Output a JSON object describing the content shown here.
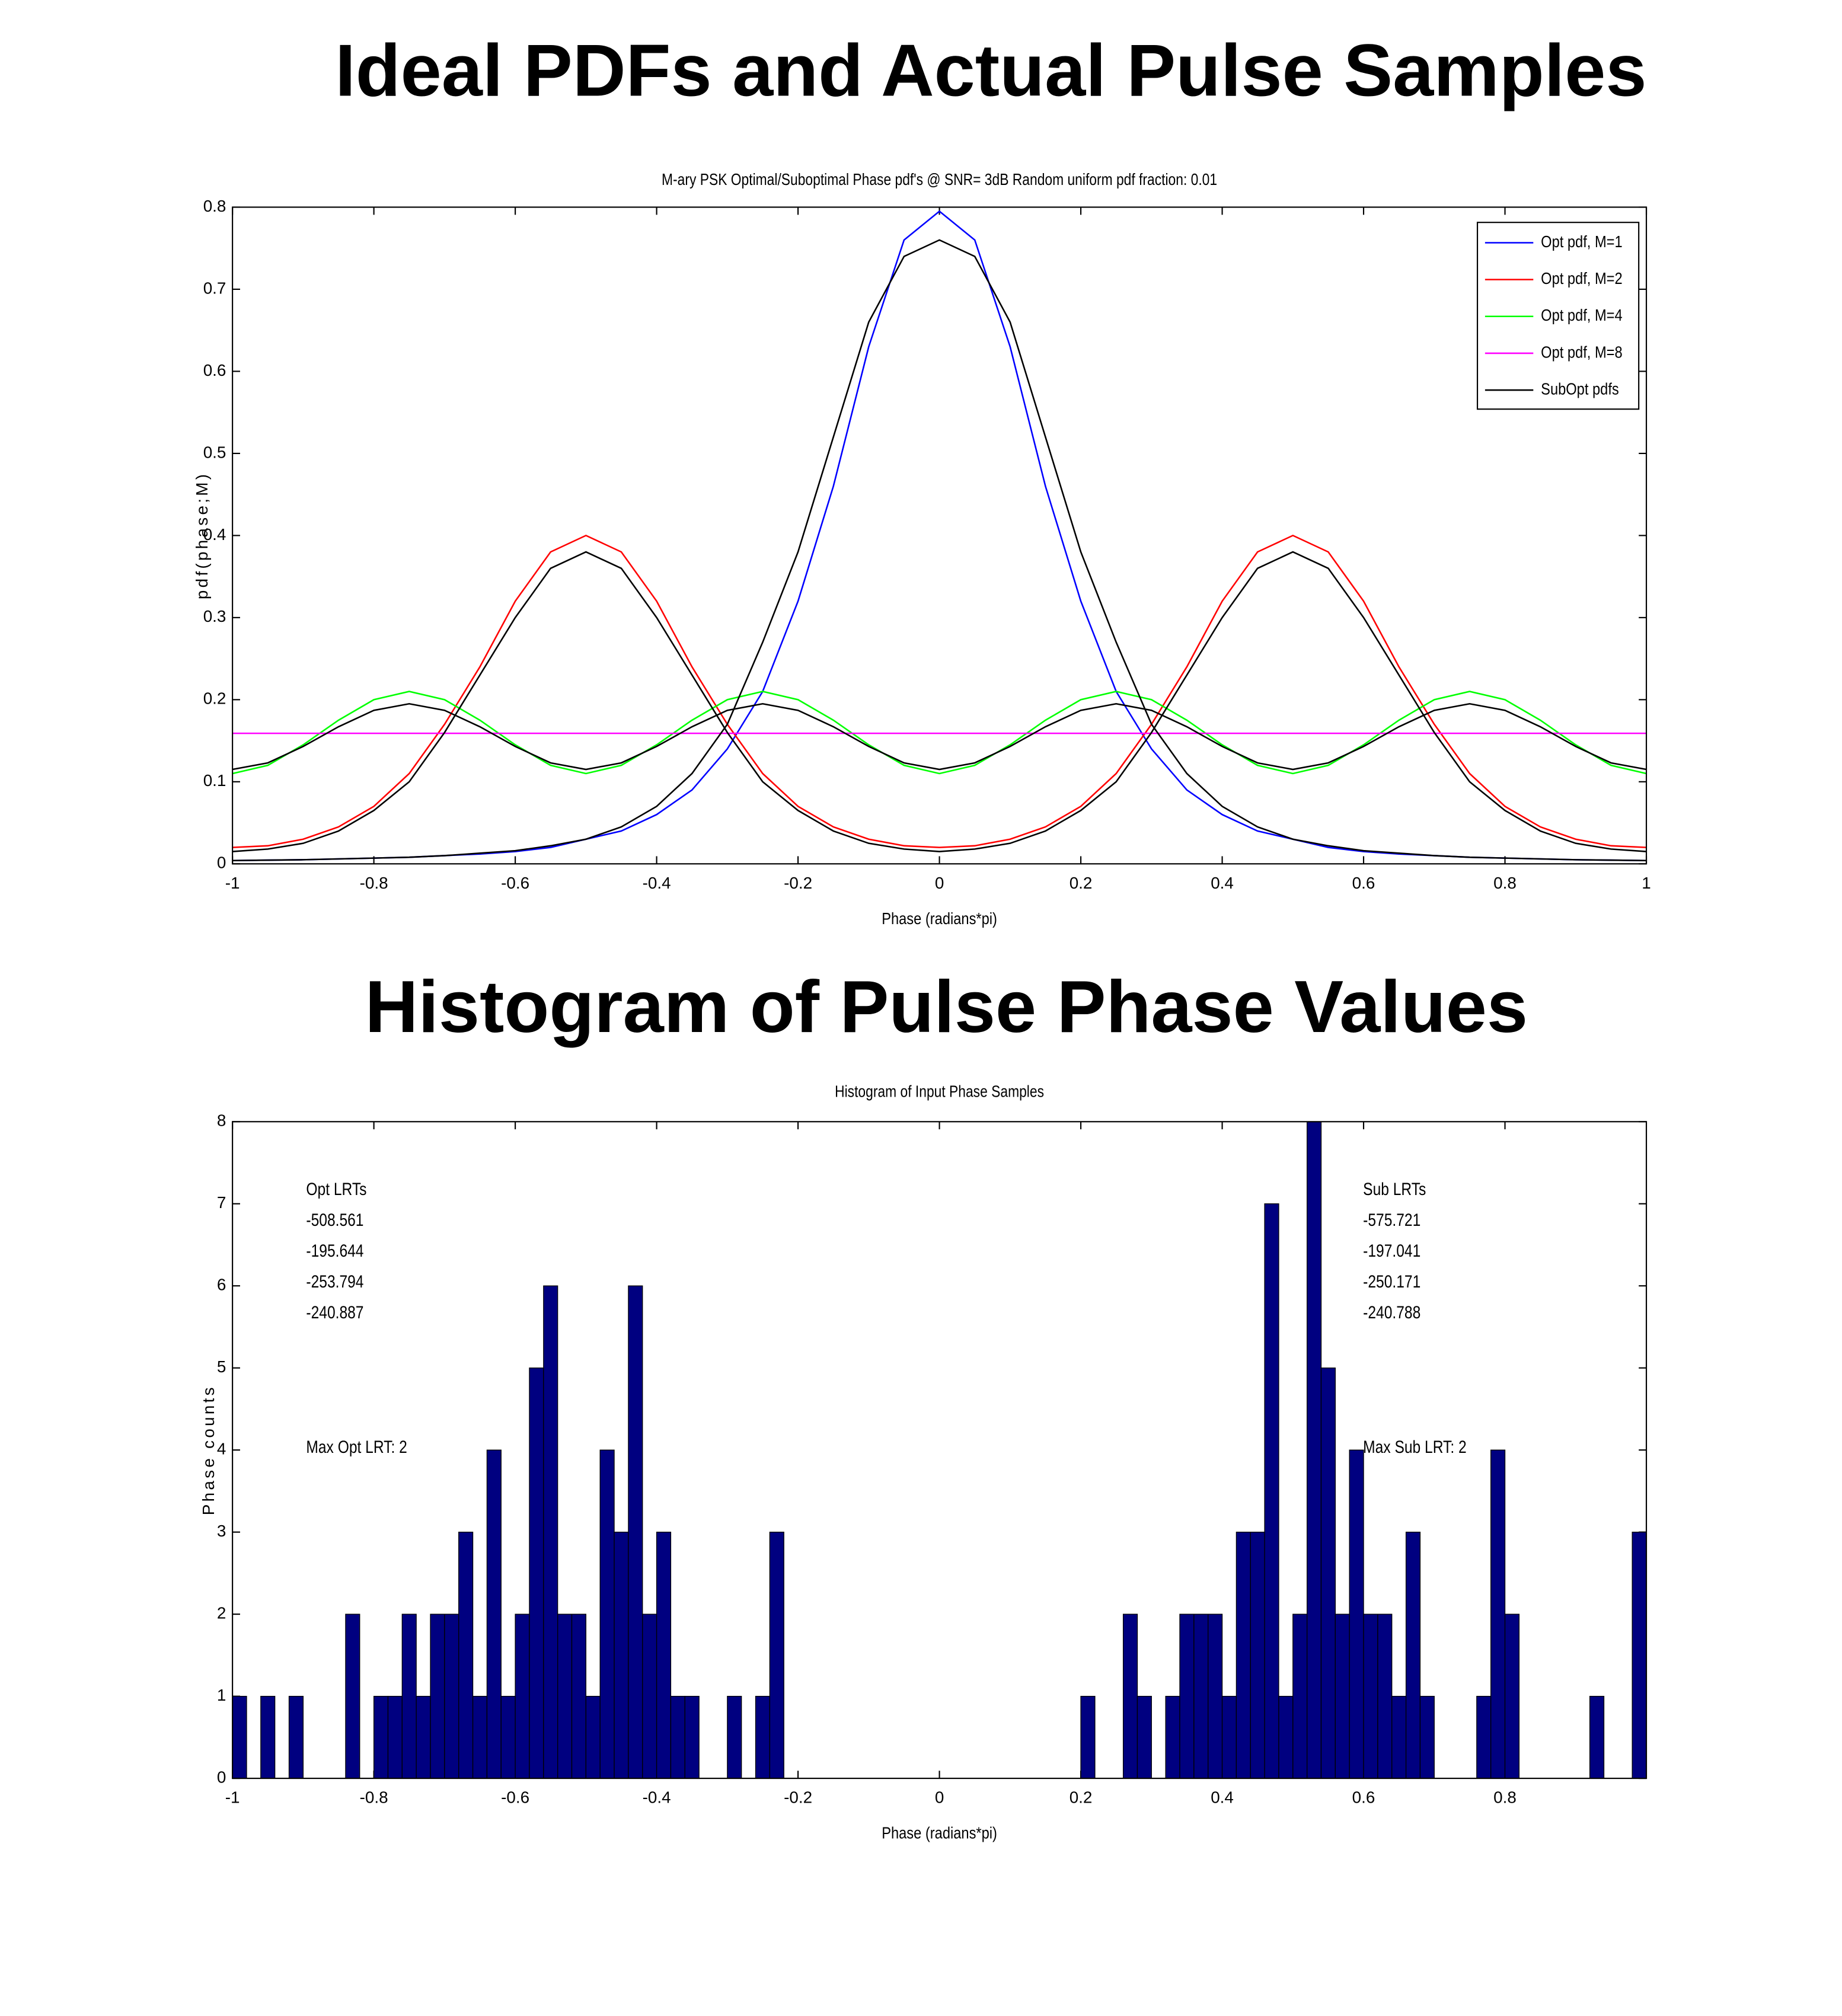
{
  "headings": [
    "Ideal PDFs and Actual Pulse Samples",
    "Histogram of Pulse Phase Values"
  ],
  "chart_data": [
    {
      "type": "line",
      "title": "M-ary PSK Optimal/Suboptimal Phase pdf's @ SNR= 3dB Random uniform pdf fraction: 0.01",
      "xlabel": "Phase (radians*pi)",
      "ylabel": "pdf(phase;M)",
      "xlim": [
        -1,
        1
      ],
      "ylim": [
        0,
        0.8
      ],
      "xticks": [
        -1,
        -0.8,
        -0.6,
        -0.4,
        -0.2,
        0,
        0.2,
        0.4,
        0.6,
        0.8,
        1
      ],
      "yticks": [
        0,
        0.1,
        0.2,
        0.3,
        0.4,
        0.5,
        0.6,
        0.7,
        0.8
      ],
      "legend": "upper right",
      "x": [
        -1,
        -0.95,
        -0.9,
        -0.85,
        -0.8,
        -0.75,
        -0.7,
        -0.65,
        -0.6,
        -0.55,
        -0.5,
        -0.45,
        -0.4,
        -0.35,
        -0.3,
        -0.25,
        -0.2,
        -0.15,
        -0.1,
        -0.05,
        0,
        0.05,
        0.1,
        0.15,
        0.2,
        0.25,
        0.3,
        0.35,
        0.4,
        0.45,
        0.5,
        0.55,
        0.6,
        0.65,
        0.7,
        0.75,
        0.8,
        0.85,
        0.9,
        0.95,
        1
      ],
      "series": [
        {
          "name": "Opt pdf, M=1",
          "color": "#0000ff",
          "values": [
            0.004,
            0.0045,
            0.005,
            0.006,
            0.007,
            0.008,
            0.01,
            0.012,
            0.015,
            0.02,
            0.03,
            0.04,
            0.06,
            0.09,
            0.14,
            0.21,
            0.32,
            0.46,
            0.63,
            0.76,
            0.795,
            0.76,
            0.63,
            0.46,
            0.32,
            0.21,
            0.14,
            0.09,
            0.06,
            0.04,
            0.03,
            0.02,
            0.015,
            0.012,
            0.01,
            0.008,
            0.007,
            0.006,
            0.005,
            0.0045,
            0.004
          ]
        },
        {
          "name": "Opt pdf, M=2",
          "color": "#ff0000",
          "values": [
            0.02,
            0.022,
            0.03,
            0.045,
            0.07,
            0.11,
            0.17,
            0.24,
            0.32,
            0.38,
            0.4,
            0.38,
            0.32,
            0.24,
            0.17,
            0.11,
            0.07,
            0.045,
            0.03,
            0.022,
            0.02,
            0.022,
            0.03,
            0.045,
            0.07,
            0.11,
            0.17,
            0.24,
            0.32,
            0.38,
            0.4,
            0.38,
            0.32,
            0.24,
            0.17,
            0.11,
            0.07,
            0.045,
            0.03,
            0.022,
            0.02
          ]
        },
        {
          "name": "Opt pdf, M=4",
          "color": "#00ff00",
          "values": [
            0.11,
            0.12,
            0.145,
            0.175,
            0.2,
            0.21,
            0.2,
            0.175,
            0.145,
            0.12,
            0.11,
            0.12,
            0.145,
            0.175,
            0.2,
            0.21,
            0.2,
            0.175,
            0.145,
            0.12,
            0.11,
            0.12,
            0.145,
            0.175,
            0.2,
            0.21,
            0.2,
            0.175,
            0.145,
            0.12,
            0.11,
            0.12,
            0.145,
            0.175,
            0.2,
            0.21,
            0.2,
            0.175,
            0.145,
            0.12,
            0.11
          ]
        },
        {
          "name": "Opt pdf, M=8",
          "color": "#ff00ff",
          "x": [
            -1,
            1
          ],
          "values": [
            0.159,
            0.159
          ]
        },
        {
          "name": "SubOpt pdfs",
          "color": "#000000",
          "x": [
            -1,
            -0.95,
            -0.9,
            -0.85,
            -0.8,
            -0.75,
            -0.7,
            -0.65,
            -0.6,
            -0.55,
            -0.5,
            -0.45,
            -0.4,
            -0.35,
            -0.3,
            -0.25,
            -0.2,
            -0.15,
            -0.1,
            -0.05,
            0,
            0.05,
            0.1,
            0.15,
            0.2,
            0.25,
            0.3,
            0.35,
            0.4,
            0.45,
            0.5,
            0.55,
            0.6,
            0.65,
            0.7,
            0.75,
            0.8,
            0.85,
            0.9,
            0.95,
            1,
            null,
            -1,
            -0.95,
            -0.9,
            -0.85,
            -0.8,
            -0.75,
            -0.7,
            -0.65,
            -0.6,
            -0.55,
            -0.5,
            -0.45,
            -0.4,
            -0.35,
            -0.3,
            -0.25,
            -0.2,
            -0.15,
            -0.1,
            -0.05,
            0,
            0.05,
            0.1,
            0.15,
            0.2,
            0.25,
            0.3,
            0.35,
            0.4,
            0.45,
            0.5,
            0.55,
            0.6,
            0.65,
            0.7,
            0.75,
            0.8,
            0.85,
            0.9,
            0.95,
            1,
            null,
            -1,
            -0.95,
            -0.9,
            -0.85,
            -0.8,
            -0.75,
            -0.7,
            -0.65,
            -0.6,
            -0.55,
            -0.5,
            -0.45,
            -0.4,
            -0.35,
            -0.3,
            -0.25,
            -0.2,
            -0.15,
            -0.1,
            -0.05,
            0,
            0.05,
            0.1,
            0.15,
            0.2,
            0.25,
            0.3,
            0.35,
            0.4,
            0.45,
            0.5,
            0.55,
            0.6,
            0.65,
            0.7,
            0.75,
            0.8,
            0.85,
            0.9,
            0.95,
            1
          ],
          "values": [
            0.004,
            0.0045,
            0.005,
            0.006,
            0.007,
            0.008,
            0.01,
            0.013,
            0.016,
            0.022,
            0.03,
            0.045,
            0.07,
            0.11,
            0.17,
            0.27,
            0.38,
            0.52,
            0.66,
            0.74,
            0.76,
            0.74,
            0.66,
            0.52,
            0.38,
            0.27,
            0.17,
            0.11,
            0.07,
            0.045,
            0.03,
            0.022,
            0.016,
            0.013,
            0.01,
            0.008,
            0.007,
            0.006,
            0.005,
            0.0045,
            0.004,
            null,
            0.015,
            0.018,
            0.025,
            0.04,
            0.065,
            0.1,
            0.16,
            0.23,
            0.3,
            0.36,
            0.38,
            0.36,
            0.3,
            0.23,
            0.16,
            0.1,
            0.065,
            0.04,
            0.025,
            0.018,
            0.015,
            0.018,
            0.025,
            0.04,
            0.065,
            0.1,
            0.16,
            0.23,
            0.3,
            0.36,
            0.38,
            0.36,
            0.3,
            0.23,
            0.16,
            0.1,
            0.065,
            0.04,
            0.025,
            0.018,
            0.015,
            null,
            0.115,
            0.123,
            0.143,
            0.167,
            0.187,
            0.195,
            0.187,
            0.167,
            0.143,
            0.123,
            0.115,
            0.123,
            0.143,
            0.167,
            0.187,
            0.195,
            0.187,
            0.167,
            0.143,
            0.123,
            0.115,
            0.123,
            0.143,
            0.167,
            0.187,
            0.195,
            0.187,
            0.167,
            0.143,
            0.123,
            0.115,
            0.123,
            0.143,
            0.167,
            0.187,
            0.195,
            0.187,
            0.167,
            0.143,
            0.123,
            0.115
          ]
        }
      ]
    },
    {
      "type": "histogram",
      "title": "Histogram of Input Phase Samples",
      "xlabel": "Phase (radians*pi)",
      "ylabel": "Phase counts",
      "xlim": [
        -1,
        1
      ],
      "ylim": [
        0,
        8
      ],
      "xticks": [
        -1,
        -0.8,
        -0.6,
        -0.4,
        -0.2,
        0,
        0.2,
        0.4,
        0.6,
        0.8
      ],
      "yticks": [
        0,
        1,
        2,
        3,
        4,
        5,
        6,
        7,
        8
      ],
      "color": "#000080",
      "bins": [
        -1,
        -0.98,
        -0.96,
        -0.94,
        -0.92,
        -0.9,
        -0.88,
        -0.86,
        -0.84,
        -0.82,
        -0.8,
        -0.78,
        -0.76,
        -0.74,
        -0.72,
        -0.7,
        -0.68,
        -0.66,
        -0.64,
        -0.62,
        -0.6,
        -0.58,
        -0.56,
        -0.54,
        -0.52,
        -0.5,
        -0.48,
        -0.46,
        -0.44,
        -0.42,
        -0.4,
        -0.38,
        -0.36,
        -0.34,
        -0.32,
        -0.3,
        -0.28,
        -0.26,
        -0.24,
        -0.22,
        -0.2,
        -0.18,
        -0.16,
        -0.14,
        -0.12,
        -0.1,
        -0.08,
        -0.06,
        -0.04,
        -0.02,
        0,
        0.02,
        0.04,
        0.06,
        0.08,
        0.1,
        0.12,
        0.14,
        0.16,
        0.18,
        0.2,
        0.22,
        0.24,
        0.26,
        0.28,
        0.3,
        0.32,
        0.34,
        0.36,
        0.38,
        0.4,
        0.42,
        0.44,
        0.46,
        0.48,
        0.5,
        0.52,
        0.54,
        0.56,
        0.58,
        0.6,
        0.62,
        0.64,
        0.66,
        0.68,
        0.7,
        0.72,
        0.74,
        0.76,
        0.78,
        0.8,
        0.82,
        0.84,
        0.86,
        0.88,
        0.9,
        0.92,
        0.94,
        0.96,
        0.98,
        1
      ],
      "values": [
        1,
        0,
        1,
        0,
        1,
        0,
        0,
        0,
        2,
        0,
        1,
        1,
        2,
        1,
        2,
        2,
        3,
        1,
        4,
        1,
        2,
        5,
        6,
        2,
        2,
        1,
        4,
        3,
        6,
        2,
        3,
        1,
        1,
        0,
        0,
        1,
        0,
        1,
        3,
        0,
        0,
        0,
        0,
        0,
        0,
        0,
        0,
        0,
        0,
        0,
        0,
        0,
        0,
        0,
        0,
        0,
        0,
        0,
        0,
        0,
        1,
        0,
        0,
        2,
        1,
        0,
        1,
        2,
        2,
        2,
        1,
        3,
        3,
        7,
        1,
        2,
        8,
        5,
        2,
        4,
        2,
        2,
        1,
        3,
        1,
        0,
        0,
        0,
        1,
        4,
        2,
        0,
        0,
        0,
        0,
        0,
        1,
        0,
        0,
        3
      ],
      "annotations": [
        [
          "Opt LRTs",
          "-508.561",
          "-195.644",
          "-253.794",
          "-240.887",
          "Max Opt LRT: 2"
        ],
        [
          "Sub LRTs",
          "-575.721",
          "-197.041",
          "-250.171",
          "-240.788",
          "Max Sub LRT: 2"
        ]
      ]
    }
  ]
}
